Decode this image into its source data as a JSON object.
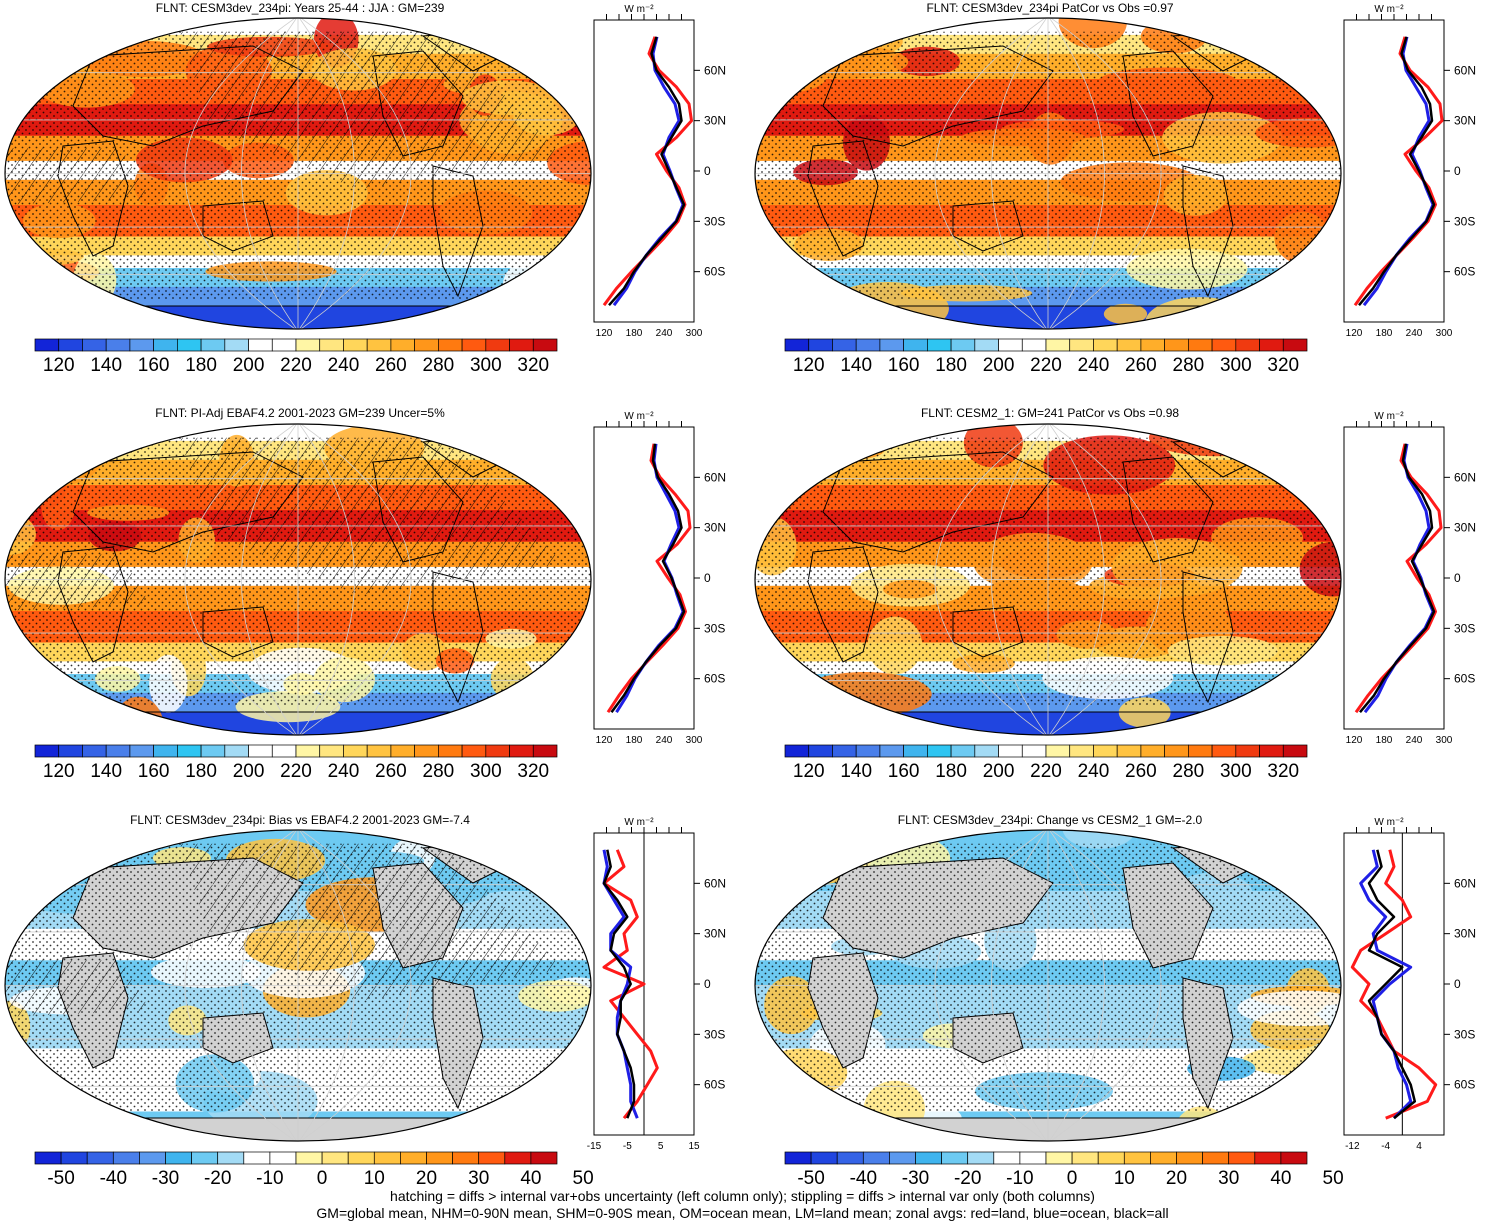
{
  "footer": {
    "line1": "hatching = diffs > internal var+obs uncertainty (left column only); stippling = diffs > internal var only (both columns)",
    "line2": "GM=global mean, NHM=0-90N mean, SHM=0-90S mean, OM=ocean mean, LM=land mean; zonal avgs: red=land, blue=ocean, black=all"
  },
  "colors": {
    "land": "#d2d2d2",
    "zonal_land": "#ff1a1a",
    "zonal_ocean": "#1f1fe6",
    "zonal_all": "#000000"
  },
  "units_label": "W m⁻²",
  "lat_ticks": [
    "60N",
    "30N",
    "0",
    "30S",
    "60S"
  ],
  "palettes": {
    "abs": [
      "#1224d8",
      "#2045e0",
      "#3563e6",
      "#4a7fea",
      "#5c99ee",
      "#3fb4ee",
      "#2ec5f2",
      "#6dcaf2",
      "#a3dbf5",
      "#ffffff",
      "#ffffff",
      "#fff6a5",
      "#ffe680",
      "#ffd65a",
      "#ffc340",
      "#ffae2a",
      "#ff961a",
      "#ff7a10",
      "#ff5a10",
      "#f03a10",
      "#e01a10",
      "#c80a10"
    ],
    "diff": [
      "#1224d8",
      "#2045e0",
      "#3563e6",
      "#4a7fea",
      "#5c99ee",
      "#3fb4ee",
      "#6dcaf2",
      "#a3dbf5",
      "#ffffff",
      "#ffffff",
      "#fff6a5",
      "#ffe680",
      "#ffd65a",
      "#ffc340",
      "#ffae2a",
      "#ff961a",
      "#ff7a10",
      "#ff5a10",
      "#e01a10",
      "#c80a10"
    ]
  },
  "chart_data": [
    {
      "type": "heatmap",
      "title": "FLNT: CESM3dev_234pi: Years 25-44 : JJA : GM=239",
      "palette": "abs",
      "colorbar_labels": [
        "120",
        "140",
        "160",
        "180",
        "200",
        "220",
        "240",
        "260",
        "280",
        "300",
        "320"
      ],
      "zonal_xticks": [
        "120",
        "180",
        "240",
        "300"
      ],
      "zonal_xlim": [
        100,
        300
      ],
      "hatching": true,
      "zonal_mean": {
        "lat": [
          80,
          70,
          60,
          50,
          40,
          30,
          20,
          10,
          0,
          -10,
          -20,
          -30,
          -40,
          -50,
          -60,
          -70,
          -80
        ],
        "all": [
          225,
          215,
          225,
          250,
          270,
          275,
          255,
          235,
          250,
          265,
          280,
          265,
          235,
          205,
          180,
          160,
          130
        ],
        "land": [
          222,
          210,
          230,
          265,
          290,
          295,
          265,
          225,
          245,
          270,
          282,
          268,
          240,
          208,
          175,
          145,
          120
        ],
        "ocean": [
          226,
          218,
          222,
          240,
          262,
          270,
          250,
          238,
          252,
          264,
          278,
          264,
          232,
          205,
          182,
          165,
          140
        ]
      }
    },
    {
      "type": "heatmap",
      "title": "FLNT: CESM3dev_234pi PatCor vs Obs =0.97",
      "palette": "abs",
      "colorbar_labels": [
        "120",
        "140",
        "160",
        "180",
        "200",
        "220",
        "240",
        "260",
        "280",
        "300",
        "320"
      ],
      "zonal_xticks": [
        "120",
        "180",
        "240",
        "300"
      ],
      "zonal_xlim": [
        100,
        300
      ],
      "hatching": false,
      "zonal_mean": {
        "lat": [
          80,
          70,
          60,
          50,
          40,
          30,
          20,
          10,
          0,
          -10,
          -20,
          -30,
          -40,
          -50,
          -60,
          -70,
          -80
        ],
        "all": [
          225,
          215,
          228,
          255,
          272,
          276,
          255,
          232,
          250,
          266,
          280,
          265,
          235,
          205,
          180,
          158,
          130
        ],
        "land": [
          222,
          212,
          232,
          268,
          292,
          296,
          262,
          222,
          244,
          270,
          283,
          268,
          238,
          206,
          174,
          146,
          122
        ],
        "ocean": [
          226,
          218,
          224,
          244,
          264,
          270,
          250,
          236,
          252,
          264,
          278,
          264,
          232,
          205,
          184,
          166,
          140
        ]
      }
    },
    {
      "type": "heatmap",
      "title": "FLNT: PI-Adj EBAF4.2 2001-2023 GM=239 Uncer=5%",
      "palette": "abs",
      "colorbar_labels": [
        "120",
        "140",
        "160",
        "180",
        "200",
        "220",
        "240",
        "260",
        "280",
        "300",
        "320"
      ],
      "zonal_xticks": [
        "120",
        "180",
        "240",
        "300"
      ],
      "zonal_xlim": [
        100,
        300
      ],
      "hatching": true,
      "zonal_mean": {
        "lat": [
          80,
          70,
          60,
          50,
          40,
          30,
          20,
          10,
          0,
          -10,
          -20,
          -30,
          -40,
          -50,
          -60,
          -70,
          -80
        ],
        "all": [
          222,
          218,
          228,
          250,
          268,
          275,
          258,
          238,
          255,
          268,
          280,
          264,
          232,
          204,
          180,
          160,
          135
        ],
        "land": [
          220,
          214,
          232,
          262,
          288,
          292,
          266,
          226,
          248,
          272,
          283,
          268,
          238,
          206,
          175,
          150,
          128
        ],
        "ocean": [
          224,
          220,
          226,
          244,
          262,
          270,
          254,
          240,
          256,
          266,
          278,
          262,
          230,
          204,
          182,
          166,
          145
        ]
      }
    },
    {
      "type": "heatmap",
      "title": "FLNT: CESM2_1: GM=241 PatCor vs Obs =0.98",
      "palette": "abs",
      "colorbar_labels": [
        "120",
        "140",
        "160",
        "180",
        "200",
        "220",
        "240",
        "260",
        "280",
        "300",
        "320"
      ],
      "zonal_xticks": [
        "120",
        "180",
        "240",
        "300"
      ],
      "zonal_xlim": [
        100,
        300
      ],
      "hatching": false,
      "zonal_mean": {
        "lat": [
          80,
          70,
          60,
          50,
          40,
          30,
          20,
          10,
          0,
          -10,
          -20,
          -30,
          -40,
          -50,
          -60,
          -70,
          -80
        ],
        "all": [
          224,
          218,
          230,
          256,
          272,
          276,
          256,
          236,
          252,
          266,
          280,
          264,
          234,
          205,
          180,
          160,
          132
        ],
        "land": [
          222,
          214,
          234,
          266,
          290,
          294,
          264,
          226,
          246,
          270,
          283,
          268,
          238,
          207,
          175,
          148,
          124
        ],
        "ocean": [
          226,
          220,
          228,
          248,
          264,
          270,
          252,
          238,
          254,
          264,
          278,
          262,
          232,
          205,
          184,
          168,
          142
        ]
      }
    },
    {
      "type": "heatmap",
      "title": "FLNT: CESM3dev_234pi: Bias vs EBAF4.2 2001-2023 GM=-7.4",
      "palette": "diff",
      "colorbar_labels": [
        "-50",
        "-40",
        "-30",
        "-20",
        "-10",
        "0",
        "10",
        "20",
        "30",
        "40",
        "50"
      ],
      "zonal_xticks": [
        "-15",
        "-5",
        "5",
        "15"
      ],
      "zonal_xlim": [
        -15,
        15
      ],
      "hatching": true,
      "zonal_mean": {
        "lat": [
          80,
          70,
          60,
          50,
          40,
          30,
          20,
          10,
          0,
          -10,
          -20,
          -30,
          -40,
          -50,
          -60,
          -70,
          -80
        ],
        "all": [
          -11,
          -10,
          -12,
          -8,
          -5,
          -9,
          -10,
          -6,
          -4,
          -7,
          -7,
          -8,
          -6,
          -4,
          -3,
          -3,
          -5
        ],
        "land": [
          -8,
          -6,
          -12,
          -4,
          -2,
          -6,
          -5,
          -12,
          0,
          -10,
          -6,
          -2,
          2,
          4,
          1,
          -2,
          -6
        ],
        "ocean": [
          -12,
          -11,
          -12,
          -9,
          -6,
          -10,
          -10,
          -4,
          -5,
          -7,
          -8,
          -8,
          -6,
          -5,
          -4,
          -4,
          -2
        ]
      }
    },
    {
      "type": "heatmap",
      "title": "FLNT: CESM3dev_234pi: Change vs CESM2_1 GM=-2.0",
      "palette": "diff",
      "colorbar_labels": [
        "-50",
        "-40",
        "-30",
        "-20",
        "-10",
        "0",
        "10",
        "20",
        "30",
        "40",
        "50"
      ],
      "zonal_xticks": [
        "-12",
        "-4",
        "4"
      ],
      "zonal_xlim": [
        -14,
        10
      ],
      "hatching": false,
      "zonal_mean": {
        "lat": [
          80,
          70,
          60,
          50,
          40,
          30,
          20,
          10,
          0,
          -10,
          -20,
          -30,
          -40,
          -50,
          -60,
          -70,
          -80
        ],
        "all": [
          -6,
          -5,
          -8,
          -6,
          -2,
          -6,
          -8,
          0,
          -4,
          -8,
          -6,
          -5,
          -2,
          0,
          2,
          3,
          -2
        ],
        "land": [
          -3,
          -2,
          -4,
          0,
          2,
          -4,
          -10,
          -12,
          -8,
          -10,
          -6,
          -4,
          -2,
          4,
          8,
          6,
          -4
        ],
        "ocean": [
          -7,
          -6,
          -10,
          -8,
          -4,
          -7,
          -6,
          2,
          -3,
          -7,
          -6,
          -5,
          -2,
          -1,
          1,
          2,
          -2
        ]
      }
    }
  ]
}
